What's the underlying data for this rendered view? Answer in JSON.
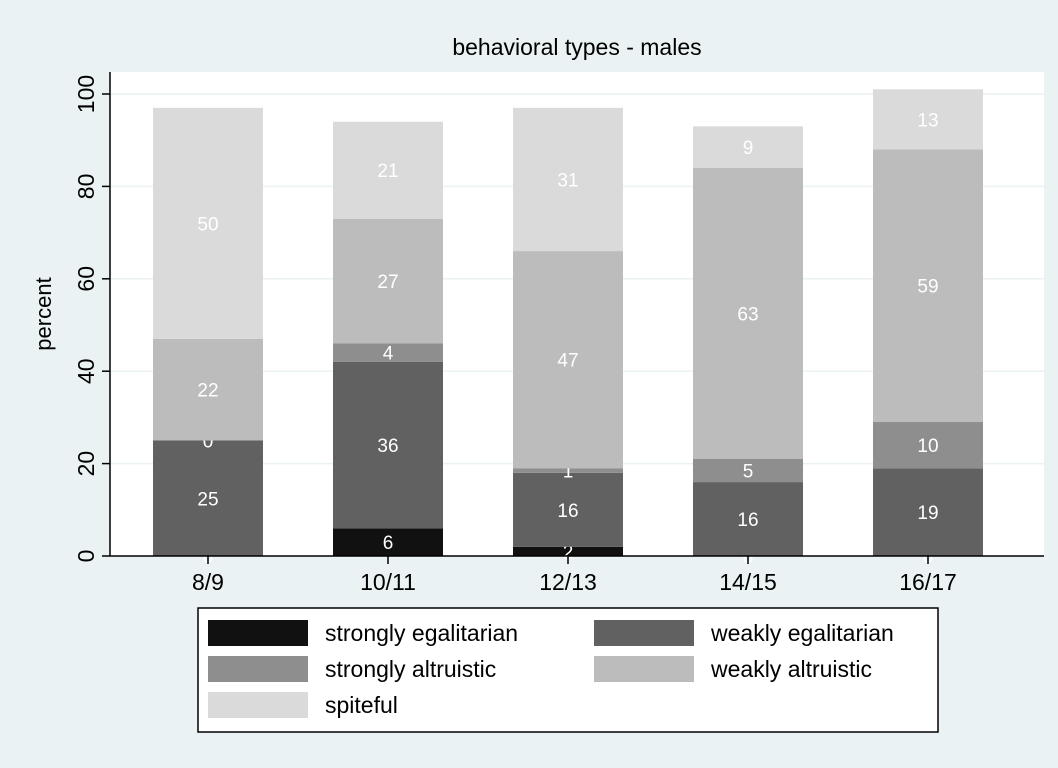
{
  "chart_data": {
    "type": "bar",
    "stacked": true,
    "title": "behavioral types - males",
    "xlabel": "",
    "ylabel": "percent",
    "ylim": [
      0,
      100
    ],
    "yticks": [
      0,
      20,
      40,
      60,
      80,
      100
    ],
    "grid": true,
    "legend_position": "bottom",
    "categories": [
      "8/9",
      "10/11",
      "12/13",
      "14/15",
      "16/17"
    ],
    "series": [
      {
        "name": "strongly egalitarian",
        "color": "#111111",
        "values": [
          0,
          6,
          2,
          0,
          0
        ]
      },
      {
        "name": "weakly egalitarian",
        "color": "#616161",
        "values": [
          25,
          36,
          16,
          16,
          19
        ]
      },
      {
        "name": "strongly altruistic",
        "color": "#8e8e8e",
        "values": [
          0,
          4,
          1,
          5,
          10
        ]
      },
      {
        "name": "weakly altruistic",
        "color": "#bcbcbc",
        "values": [
          22,
          27,
          47,
          63,
          59
        ]
      },
      {
        "name": "spiteful",
        "color": "#dadada",
        "values": [
          50,
          21,
          31,
          9,
          13
        ]
      }
    ],
    "colors": {
      "plot_background": "#ffffff",
      "page_background": "#eaf2f3",
      "gridline": "#eaf2f3",
      "label_on_bar": "#ffffff"
    }
  }
}
